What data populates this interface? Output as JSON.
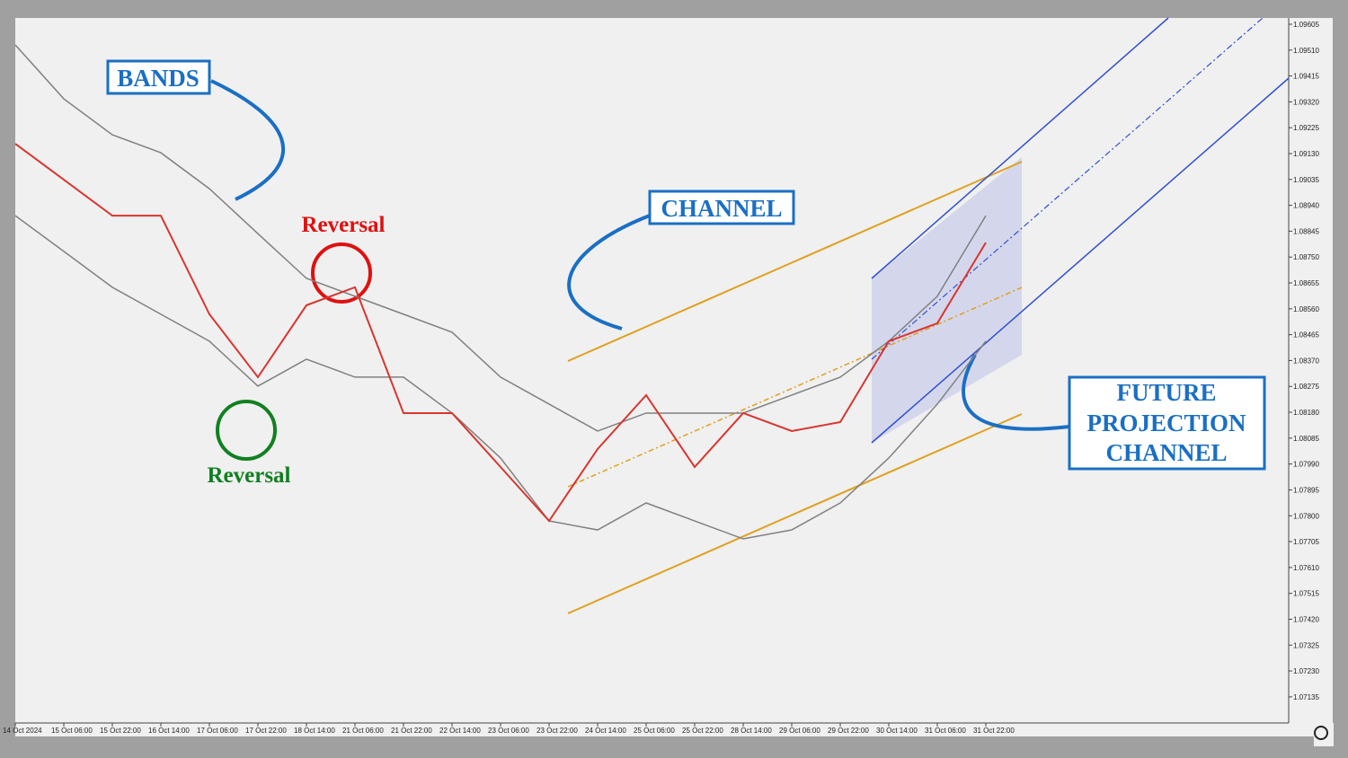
{
  "chart_data": {
    "type": "line",
    "categories": [
      "14 Oct 2024",
      "15 Oct 06:00",
      "15 Oct 22:00",
      "16 Oct 14:00",
      "17 Oct 06:00",
      "17 Oct 22:00",
      "18 Oct 14:00",
      "21 Oct 06:00",
      "21 Oct 22:00",
      "22 Oct 14:00",
      "23 Oct 06:00",
      "23 Oct 22:00",
      "24 Oct 14:00",
      "25 Oct 06:00",
      "25 Oct 22:00",
      "28 Oct 14:00",
      "29 Oct 06:00",
      "29 Oct 22:00",
      "30 Oct 14:00",
      "31 Oct 06:00",
      "31 Oct 22:00"
    ],
    "close": [
      1.09166,
      1.09034,
      1.08902,
      1.08902,
      1.0854,
      1.08309,
      1.08573,
      1.08639,
      1.08177,
      1.08177,
      1.07979,
      1.07781,
      1.08045,
      1.08243,
      1.07979,
      1.08177,
      1.08111,
      1.08144,
      1.08441,
      1.08507,
      1.08803
    ],
    "close_color": "#d9352f",
    "upper_band": [
      1.09529,
      1.09331,
      1.09199,
      1.09133,
      1.09001,
      1.08836,
      1.08672,
      1.08606,
      1.0854,
      1.08474,
      1.08309,
      1.0821,
      1.08111,
      1.08177,
      1.08177,
      1.08177,
      1.08243,
      1.08309,
      1.08441,
      1.08606,
      1.08902
    ],
    "lower_band": [
      1.08902,
      1.08771,
      1.08639,
      1.0854,
      1.08441,
      1.08276,
      1.08375,
      1.08309,
      1.08309,
      1.08177,
      1.08012,
      1.07781,
      1.07748,
      1.07847,
      1.07781,
      1.07715,
      1.07748,
      1.07847,
      1.08012,
      1.0821,
      1.08441
    ],
    "band_color": "#808080",
    "ylim": [
      1.07039,
      1.09628
    ],
    "yticks": [
      1.09605,
      {
        "value": 1.0951,
        "label": "1.09510"
      },
      1.09415,
      {
        "value": 1.0932,
        "label": "1.09320"
      },
      1.09225,
      {
        "value": 1.0913,
        "label": "1.09130"
      },
      1.09035,
      {
        "value": 1.0894,
        "label": "1.08940"
      },
      1.08845,
      {
        "value": 1.0875,
        "label": "1.08750"
      },
      1.08655,
      {
        "value": 1.0856,
        "label": "1.08560"
      },
      1.08465,
      {
        "value": 1.0837,
        "label": "1.08370"
      },
      1.08275,
      {
        "value": 1.0818,
        "label": "1.08180"
      },
      1.08085,
      {
        "value": 1.0799,
        "label": "1.07990"
      },
      1.07895,
      {
        "value": 1.078,
        "label": "1.07800"
      },
      1.07705,
      {
        "value": 1.0761,
        "label": "1.07610"
      },
      1.07515,
      {
        "value": 1.0742,
        "label": "1.07420"
      },
      1.07325,
      {
        "value": 1.0723,
        "label": "1.07230"
      },
      1.07135
    ],
    "annotations": {
      "bands": "BANDS",
      "channel": "CHANNEL",
      "future": [
        "FUTURE",
        "PROJECTION",
        "CHANNEL"
      ],
      "reversal_top": "Reversal",
      "reversal_bottom": "Reversal"
    }
  }
}
